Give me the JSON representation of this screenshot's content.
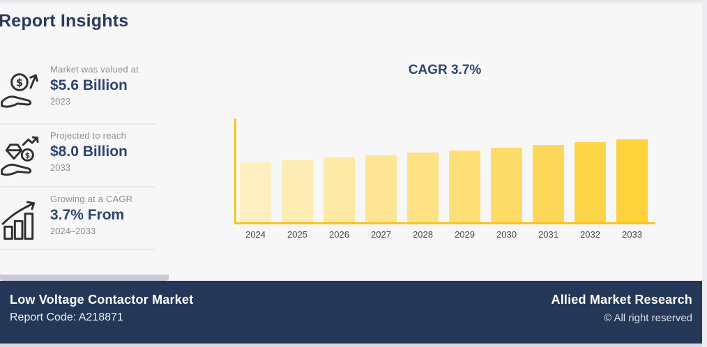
{
  "page": {
    "title": "Report Insights"
  },
  "stats": [
    {
      "icon": "hand-coin-growth-icon",
      "label": "Market was valued at",
      "value": "$5.6 Billion",
      "period": "2023"
    },
    {
      "icon": "hand-gem-growth-icon",
      "label": "Projected to reach",
      "value": "$8.0 Billion",
      "period": "2033"
    },
    {
      "icon": "bar-chart-growth-icon",
      "label": "Growing at a CAGR",
      "value": "3.7% From",
      "period": "2024–2033"
    }
  ],
  "chart_data": {
    "type": "bar",
    "title": "CAGR 3.7%",
    "categories": [
      "2024",
      "2025",
      "2026",
      "2027",
      "2028",
      "2029",
      "2030",
      "2031",
      "2032",
      "2033"
    ],
    "values": [
      5.77,
      5.99,
      6.21,
      6.44,
      6.68,
      6.92,
      7.18,
      7.45,
      7.72,
      8.0
    ],
    "ylim": [
      0,
      10
    ],
    "xlabel": "",
    "ylabel": "",
    "grid": false,
    "legend": false,
    "axis_color": "#f9c31c",
    "bar_colors": [
      "#FDEFC2",
      "#FDECB3",
      "#FDE8A4",
      "#FDE595",
      "#FDE286",
      "#FDDF76",
      "#FDDB67",
      "#FDD858",
      "#FDD549",
      "#FDD23A"
    ]
  },
  "footer": {
    "market_name": "Low Voltage Contactor Market",
    "report_code": "Report Code: A218871",
    "brand": "Allied Market Research",
    "copyright": "© All right reserved"
  },
  "colors": {
    "title_navy": "#2b3a5e",
    "value_navy": "#2c4470",
    "footer_bg": "#243756",
    "axis_gold": "#f9c31c",
    "muted_gray": "#8f8f92",
    "background": "#f7f7f8"
  }
}
